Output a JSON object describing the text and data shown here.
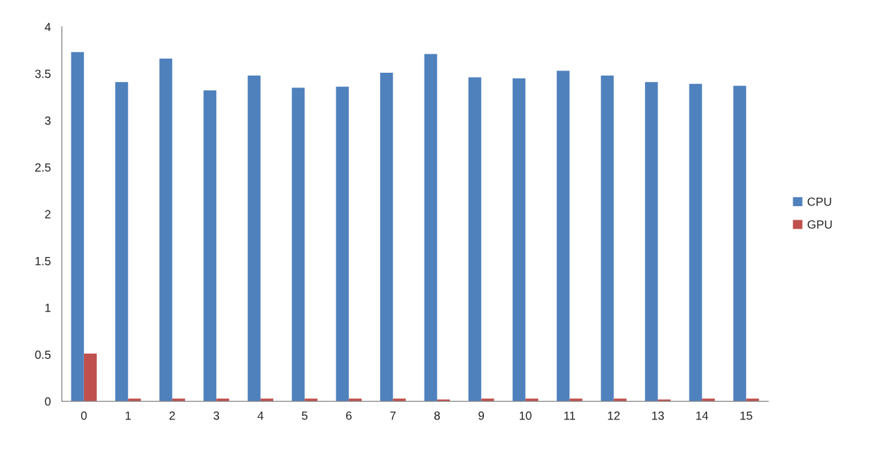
{
  "chart_data": {
    "type": "bar",
    "categories": [
      "0",
      "1",
      "2",
      "3",
      "4",
      "5",
      "6",
      "7",
      "8",
      "9",
      "10",
      "11",
      "12",
      "13",
      "14",
      "15"
    ],
    "series": [
      {
        "name": "CPU",
        "color": "#4f81bd",
        "values": [
          3.73,
          3.41,
          3.66,
          3.32,
          3.48,
          3.35,
          3.36,
          3.51,
          3.71,
          3.46,
          3.45,
          3.53,
          3.48,
          3.41,
          3.39,
          3.37
        ]
      },
      {
        "name": "GPU",
        "color": "#c0504d",
        "values": [
          0.51,
          0.03,
          0.03,
          0.03,
          0.03,
          0.03,
          0.03,
          0.03,
          0.02,
          0.03,
          0.03,
          0.03,
          0.03,
          0.02,
          0.03,
          0.03
        ]
      }
    ],
    "ylim": [
      0,
      4
    ],
    "yticks": [
      0,
      0.5,
      1,
      1.5,
      2,
      2.5,
      3,
      3.5,
      4
    ],
    "grid": false,
    "legend": "right"
  }
}
